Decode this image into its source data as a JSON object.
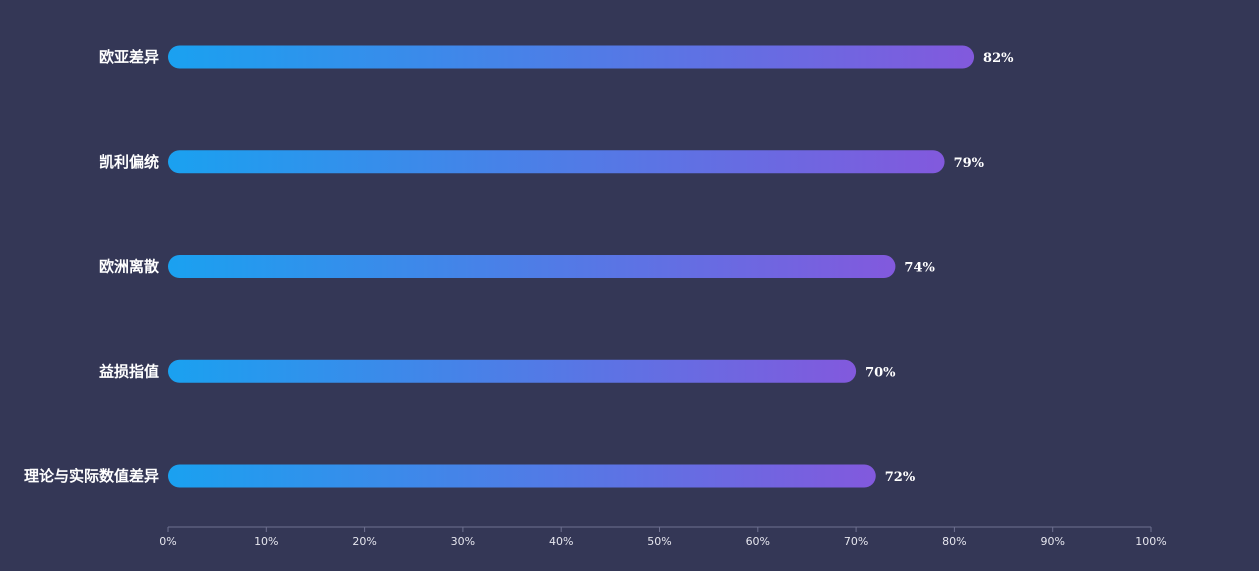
{
  "chart_data": {
    "type": "bar",
    "orientation": "horizontal",
    "categories": [
      "欧亚差异",
      "凯利偏统",
      "欧洲离散",
      "益损指值",
      "理论与实际数值差异"
    ],
    "values": [
      82,
      79,
      74,
      70,
      72
    ],
    "value_labels": [
      "82%",
      "79%",
      "74%",
      "70%",
      "72%"
    ],
    "xlim": [
      0,
      100
    ],
    "x_ticks": [
      0,
      10,
      20,
      30,
      40,
      50,
      60,
      70,
      80,
      90,
      100
    ],
    "x_tick_labels": [
      "0%",
      "10%",
      "20%",
      "30%",
      "40%",
      "50%",
      "60%",
      "70%",
      "80%",
      "90%",
      "100%"
    ],
    "grid": false,
    "legend": "none",
    "colors": {
      "background": "#343756",
      "bar_gradient_start": "#1aa1f0",
      "bar_gradient_end": "#8259dd",
      "axis_line": "#6e7090",
      "text": "#ffffff"
    }
  }
}
